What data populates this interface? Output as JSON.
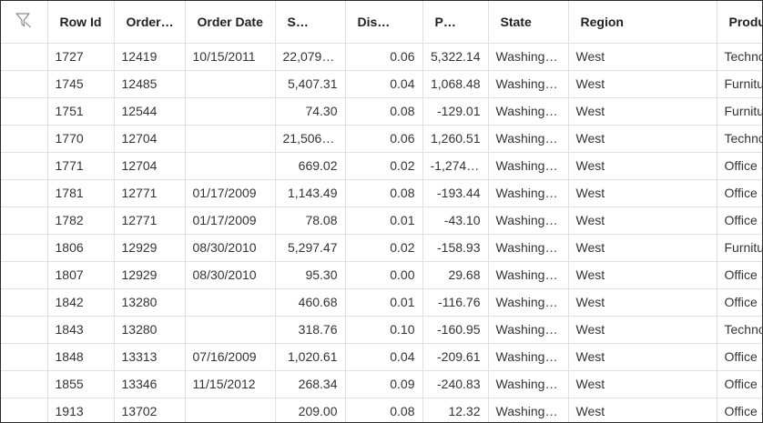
{
  "columns": [
    "Row Id",
    "Order…",
    "Order Date",
    "S…",
    "Dis…",
    "P…",
    "State",
    "Region",
    "Product Category"
  ],
  "rows": [
    [
      "1727",
      "12419",
      "10/15/2011",
      "22,079.…",
      "0.06",
      "5,322.14",
      "Washingt…",
      "West",
      "Technology"
    ],
    [
      "1745",
      "12485",
      "",
      "5,407.31",
      "0.04",
      "1,068.48",
      "Washingt…",
      "West",
      "Furniture"
    ],
    [
      "1751",
      "12544",
      "",
      "74.30",
      "0.08",
      "-129.01",
      "Washingt…",
      "West",
      "Furniture"
    ],
    [
      "1770",
      "12704",
      "",
      "21,506.…",
      "0.06",
      "1,260.51",
      "Washingt…",
      "West",
      "Technology"
    ],
    [
      "1771",
      "12704",
      "",
      "669.02",
      "0.02",
      "-1,274.…",
      "Washingt…",
      "West",
      "Office Supplies"
    ],
    [
      "1781",
      "12771",
      "01/17/2009",
      "1,143.49",
      "0.08",
      "-193.44",
      "Washingt…",
      "West",
      "Office Supplies"
    ],
    [
      "1782",
      "12771",
      "01/17/2009",
      "78.08",
      "0.01",
      "-43.10",
      "Washingt…",
      "West",
      "Office Supplies"
    ],
    [
      "1806",
      "12929",
      "08/30/2010",
      "5,297.47",
      "0.02",
      "-158.93",
      "Washingt…",
      "West",
      "Furniture"
    ],
    [
      "1807",
      "12929",
      "08/30/2010",
      "95.30",
      "0.00",
      "29.68",
      "Washingt…",
      "West",
      "Office Supplies"
    ],
    [
      "1842",
      "13280",
      "",
      "460.68",
      "0.01",
      "-116.76",
      "Washingt…",
      "West",
      "Office Supplies"
    ],
    [
      "1843",
      "13280",
      "",
      "318.76",
      "0.10",
      "-160.95",
      "Washingt…",
      "West",
      "Technology"
    ],
    [
      "1848",
      "13313",
      "07/16/2009",
      "1,020.61",
      "0.04",
      "-209.61",
      "Washingt…",
      "West",
      "Office Supplies"
    ],
    [
      "1855",
      "13346",
      "11/15/2012",
      "268.34",
      "0.09",
      "-240.83",
      "Washingt…",
      "West",
      "Office Supplies"
    ],
    [
      "1913",
      "13702",
      "",
      "209.00",
      "0.08",
      "12.32",
      "Washingt…",
      "West",
      "Office Supplies"
    ]
  ],
  "icons": {
    "filter": "filter-icon"
  }
}
